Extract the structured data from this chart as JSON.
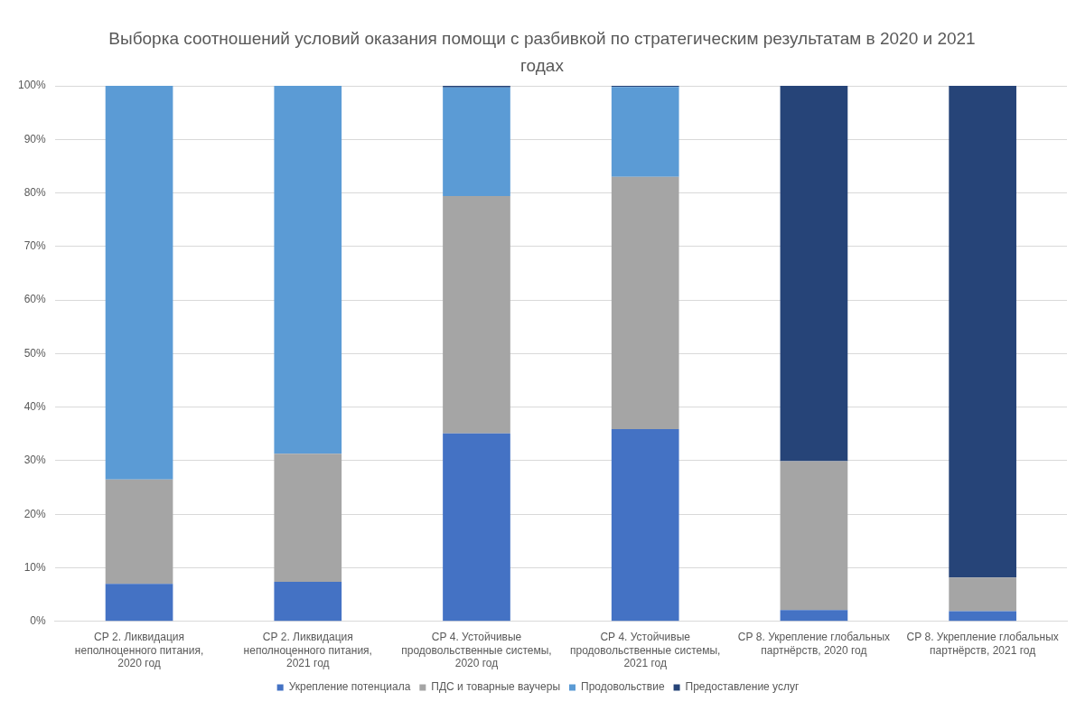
{
  "chart_data": {
    "type": "bar",
    "title": "Выборка соотношений условий оказания помощи с разбивкой по стратегическим результатам в 2020 и 2021 годах",
    "categories": [
      "СР 2. Ликвидация неполноценного питания, 2020 год",
      "СР 2. Ликвидация неполноценного питания, 2021 год",
      "СР 4. Устойчивые продовольственные системы, 2020 год",
      "СР 4. Устойчивые продовольственные системы, 2021 год",
      "СР 8. Укрепление глобальных партнёрств, 2020 год",
      "СР 8. Укрепление глобальных партнёрств, 2021 год"
    ],
    "stacked": true,
    "series": [
      {
        "name": "Укрепление потенциала",
        "color": "#4472c4",
        "values": [
          7.0,
          7.4,
          35.1,
          35.9,
          2.1,
          1.9
        ]
      },
      {
        "name": "ПДС и товарные ваучеры",
        "color": "#a5a5a5",
        "values": [
          19.5,
          23.9,
          44.3,
          47.1,
          27.8,
          6.3
        ]
      },
      {
        "name": "Продовольствие",
        "color": "#5b9bd5",
        "values": [
          73.5,
          68.7,
          20.3,
          16.8,
          0,
          0
        ]
      },
      {
        "name": "Предоставление услуг",
        "color": "#264478",
        "values": [
          0,
          0,
          0.3,
          0.2,
          70.1,
          91.8
        ]
      }
    ],
    "ylim": [
      0,
      100
    ],
    "yticks": [
      {
        "value": 0,
        "label": "0%"
      },
      {
        "value": 10,
        "label": "10%"
      },
      {
        "value": 20,
        "label": "20%"
      },
      {
        "value": 30,
        "label": "30%"
      },
      {
        "value": 40,
        "label": "40%"
      },
      {
        "value": 50,
        "label": "50%"
      },
      {
        "value": 60,
        "label": "60%"
      },
      {
        "value": 70,
        "label": "70%"
      },
      {
        "value": 80,
        "label": "80%"
      },
      {
        "value": 90,
        "label": "90%"
      },
      {
        "value": 100,
        "label": "100%"
      }
    ],
    "grid": "y",
    "legend": "bottom"
  }
}
